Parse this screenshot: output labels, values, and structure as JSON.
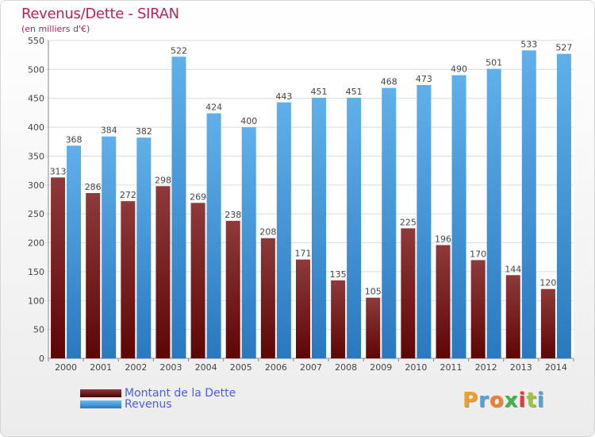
{
  "title": "Revenus/Dette - SIRAN",
  "subtitle": "(en milliers d'€)",
  "logo": {
    "text": "Proxiti",
    "letter_colors": [
      "#f2a024",
      "#4aa3df",
      "#f08030",
      "#3cb44a",
      "#e03a3a",
      "#9bc53d",
      "#4aa3df"
    ]
  },
  "colors": {
    "dette_dark": "#5e0606",
    "dette_light": "#8e3a3a",
    "revenus_light": "#5fb0ea",
    "revenus_dark": "#2a78bf",
    "title": "#b4235b",
    "legend_text": "#4a5ee0"
  },
  "chart_data": {
    "type": "bar",
    "title": "Revenus/Dette - SIRAN",
    "subtitle": "(en milliers d'€)",
    "categories": [
      "2000",
      "2001",
      "2002",
      "2003",
      "2004",
      "2005",
      "2006",
      "2007",
      "2008",
      "2009",
      "2010",
      "2011",
      "2012",
      "2013",
      "2014"
    ],
    "series": [
      {
        "name": "Montant de la Dette",
        "values": [
          313,
          286,
          272,
          298,
          269,
          238,
          208,
          171,
          135,
          105,
          225,
          196,
          170,
          144,
          120
        ]
      },
      {
        "name": "Revenus",
        "values": [
          368,
          384,
          382,
          522,
          424,
          400,
          443,
          451,
          451,
          468,
          473,
          490,
          501,
          533,
          527
        ]
      }
    ],
    "ylim": [
      0,
      550
    ],
    "yticks": [
      0,
      50,
      100,
      150,
      200,
      250,
      300,
      350,
      400,
      450,
      500,
      550
    ],
    "grid": true,
    "legend_position": "bottom-left"
  }
}
